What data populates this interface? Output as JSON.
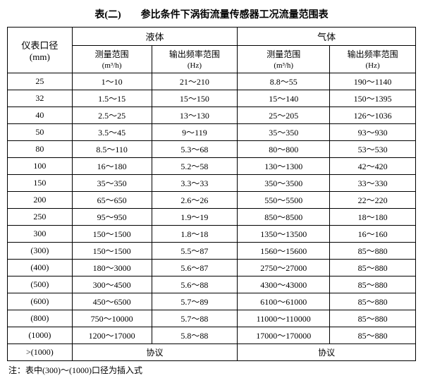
{
  "title": "表(二)　　参比条件下涡街流量传感器工况流量范围表",
  "headers": {
    "col1_line1": "仪表口径",
    "col1_line2": "(mm)",
    "liquid": "液体",
    "gas": "气体",
    "range_label": "测量范围",
    "range_unit": "(m³/h)",
    "freq_label": "输出频率范围",
    "freq_unit": "(Hz)"
  },
  "rows": [
    {
      "d": "25",
      "lr": "1～10",
      "lf": "21～210",
      "gr": "8.8～55",
      "gf": "190～1140"
    },
    {
      "d": "32",
      "lr": "1.5～15",
      "lf": "15～150",
      "gr": "15～140",
      "gf": "150～1395"
    },
    {
      "d": "40",
      "lr": "2.5～25",
      "lf": "13～130",
      "gr": "25～205",
      "gf": "126～1036"
    },
    {
      "d": "50",
      "lr": "3.5～45",
      "lf": "9～119",
      "gr": "35～350",
      "gf": "93～930"
    },
    {
      "d": "80",
      "lr": "8.5～110",
      "lf": "5.3～68",
      "gr": "80～800",
      "gf": "53～530"
    },
    {
      "d": "100",
      "lr": "16～180",
      "lf": "5.2～58",
      "gr": "130～1300",
      "gf": "42～420"
    },
    {
      "d": "150",
      "lr": "35～350",
      "lf": "3.3～33",
      "gr": "350～3500",
      "gf": "33～330"
    },
    {
      "d": "200",
      "lr": "65～650",
      "lf": "2.6～26",
      "gr": "550～5500",
      "gf": "22～220"
    },
    {
      "d": "250",
      "lr": "95～950",
      "lf": "1.9～19",
      "gr": "850～8500",
      "gf": "18～180"
    },
    {
      "d": "300",
      "lr": "150～1500",
      "lf": "1.8～18",
      "gr": "1350～13500",
      "gf": "16～160"
    },
    {
      "d": "(300)",
      "lr": "150～1500",
      "lf": "5.5～87",
      "gr": "1560～15600",
      "gf": "85～880"
    },
    {
      "d": "(400)",
      "lr": "180～3000",
      "lf": "5.6～87",
      "gr": "2750～27000",
      "gf": "85～880"
    },
    {
      "d": "(500)",
      "lr": "300～4500",
      "lf": "5.6～88",
      "gr": "4300～43000",
      "gf": "85～880"
    },
    {
      "d": "(600)",
      "lr": "450～6500",
      "lf": "5.7～89",
      "gr": "6100～61000",
      "gf": "85～880"
    },
    {
      "d": "(800)",
      "lr": "750～10000",
      "lf": "5.7～88",
      "gr": "11000～110000",
      "gf": "85～880"
    },
    {
      "d": "(1000)",
      "lr": "1200～17000",
      "lf": "5.8～88",
      "gr": "17000～170000",
      "gf": "85～880"
    },
    {
      "d": ">(1000)",
      "lr": "协议",
      "lf": "",
      "gr": "协议",
      "gf": ""
    }
  ],
  "note": "注：表中(300)～(1000)口径为插入式"
}
